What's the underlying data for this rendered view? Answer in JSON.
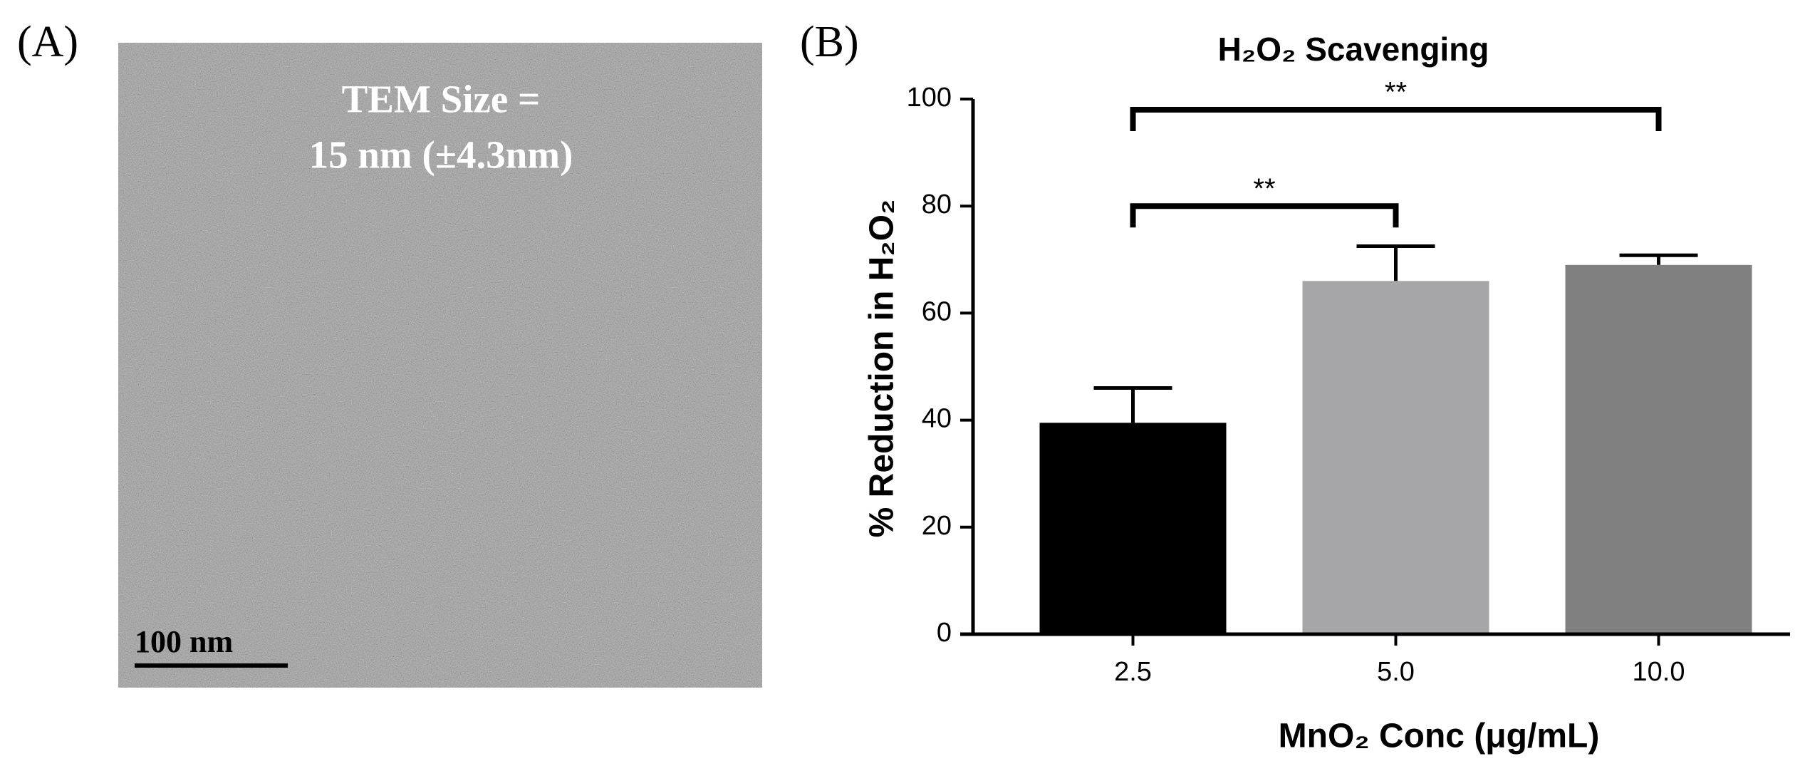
{
  "panel_labels": [
    "(A)",
    "(B)"
  ],
  "image_annotation": [
    "TEM Size =",
    "15 nm (±4.3nm)"
  ],
  "scale_bar": "100 nm",
  "chart_data": {
    "type": "bar",
    "title": "H₂O₂ Scavenging",
    "x_label": "MnO₂ Conc (μg/mL)",
    "y_label": "% Reduction in H₂O₂",
    "categories": [
      "2.5",
      "5.0",
      "10.0"
    ],
    "values": [
      39.5,
      66,
      69
    ],
    "errors": [
      6.5,
      6.5,
      1.8
    ],
    "colors": [
      "#000000",
      "#a6a6a8",
      "#808080"
    ],
    "ylim": [
      0,
      100
    ],
    "yticks": [
      0,
      20,
      40,
      60,
      80,
      100
    ],
    "annotations": [
      {
        "from": 0,
        "to": 1,
        "y": 80,
        "label": "**"
      },
      {
        "from": 0,
        "to": 2,
        "y": 98,
        "label": "**"
      }
    ]
  }
}
